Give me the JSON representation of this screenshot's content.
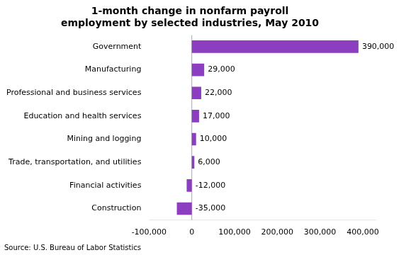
{
  "chart_data": {
    "type": "bar",
    "orientation": "horizontal",
    "title": "1-month change in nonfarm payroll\nemployment by selected industries, May 2010",
    "categories": [
      "Government",
      "Manufacturing",
      "Professional and business services",
      "Education and health services",
      "Mining and logging",
      "Trade, transportation, and utilities",
      "Financial activities",
      "Construction"
    ],
    "values": [
      390000,
      29000,
      22000,
      17000,
      10000,
      6000,
      -12000,
      -35000
    ],
    "value_labels": [
      "390,000",
      "29,000",
      "22,000",
      "17,000",
      "10,000",
      "6,000",
      "-12,000",
      "-35,000"
    ],
    "data_labels": true,
    "color": "#8B3FC0",
    "xlim": [
      -100000,
      430000
    ],
    "xticks": [
      {
        "value": -100000,
        "label": "-100,000"
      },
      0,
      {
        "value": 100000,
        "label": "100,000"
      },
      {
        "value": 200000,
        "label": "200,000"
      },
      {
        "value": 300000,
        "label": "300,000"
      },
      {
        "value": 400000,
        "label": "400,000"
      }
    ],
    "grid": false,
    "annotations": [
      "Source: U.S. Bureau of Labor Statistics"
    ]
  }
}
